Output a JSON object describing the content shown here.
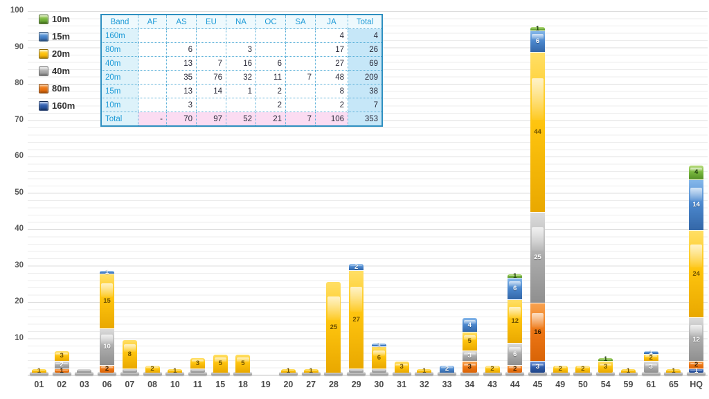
{
  "chart_data": {
    "type": "stacked-bar",
    "title": "",
    "xlabel": "",
    "ylabel": "",
    "ylim": [
      0,
      100
    ],
    "yticks": [
      100,
      90,
      80,
      70,
      60,
      50,
      40,
      30,
      20,
      10
    ],
    "grid": {
      "minor_step": 2,
      "major_step": 10
    },
    "legend_position": "top-left",
    "categories": [
      "01",
      "02",
      "03",
      "06",
      "07",
      "08",
      "10",
      "11",
      "15",
      "18",
      "19",
      "20",
      "27",
      "28",
      "29",
      "30",
      "31",
      "32",
      "33",
      "34",
      "43",
      "44",
      "45",
      "49",
      "50",
      "54",
      "59",
      "61",
      "65",
      "HQ"
    ],
    "series": [
      {
        "name": "160m",
        "color": "#2A56A8",
        "values": [
          0,
          0,
          0,
          0,
          0,
          0,
          0,
          0,
          0,
          0,
          0,
          0,
          0,
          0,
          0,
          0,
          0,
          0,
          0,
          0,
          0,
          0,
          3,
          0,
          0,
          0,
          0,
          0,
          0,
          1
        ]
      },
      {
        "name": "80m",
        "color": "#E8700A",
        "values": [
          0,
          1,
          0,
          2,
          0,
          0,
          0,
          0,
          0,
          0,
          0,
          0,
          0,
          0,
          0,
          0,
          0,
          0,
          0,
          3,
          0,
          2,
          16,
          0,
          0,
          0,
          0,
          0,
          0,
          2
        ]
      },
      {
        "name": "40m",
        "color": "#A6A6A6",
        "values": [
          0,
          2,
          1,
          10,
          1,
          0,
          0,
          1,
          0,
          0,
          0,
          0,
          0,
          0,
          1,
          1,
          0,
          0,
          0,
          3,
          0,
          6,
          25,
          0,
          0,
          0,
          0,
          3,
          0,
          12
        ]
      },
      {
        "name": "20m",
        "color": "#FDB900",
        "values": [
          1,
          3,
          0,
          15,
          8,
          2,
          1,
          3,
          5,
          5,
          0,
          1,
          1,
          25,
          27,
          6,
          3,
          1,
          0,
          5,
          2,
          12,
          44,
          2,
          2,
          3,
          1,
          2,
          1,
          24
        ]
      },
      {
        "name": "15m",
        "color": "#4080C8",
        "values": [
          0,
          0,
          0,
          1,
          0,
          0,
          0,
          0,
          0,
          0,
          0,
          0,
          0,
          0,
          2,
          1,
          0,
          0,
          2,
          4,
          0,
          6,
          6,
          0,
          0,
          0,
          0,
          1,
          0,
          14
        ]
      },
      {
        "name": "10m",
        "color": "#76B843",
        "values": [
          0,
          0,
          0,
          0,
          0,
          0,
          0,
          0,
          0,
          0,
          0,
          0,
          0,
          0,
          0,
          0,
          0,
          0,
          0,
          0,
          0,
          1,
          1,
          0,
          0,
          1,
          0,
          0,
          0,
          4
        ]
      }
    ]
  },
  "legend": {
    "items": [
      {
        "label": "10m",
        "band": "10m"
      },
      {
        "label": "15m",
        "band": "15m"
      },
      {
        "label": "20m",
        "band": "20m"
      },
      {
        "label": "40m",
        "band": "40m"
      },
      {
        "label": "80m",
        "band": "80m"
      },
      {
        "label": "160m",
        "band": "160m"
      }
    ]
  },
  "table": {
    "columns": [
      "Band",
      "AF",
      "AS",
      "EU",
      "NA",
      "OC",
      "SA",
      "JA",
      "Total"
    ],
    "rows": [
      [
        "160m",
        "",
        "",
        "",
        "",
        "",
        "",
        "4",
        "4"
      ],
      [
        "80m",
        "",
        "6",
        "",
        "3",
        "",
        "",
        "17",
        "26"
      ],
      [
        "40m",
        "",
        "13",
        "7",
        "16",
        "6",
        "",
        "27",
        "69"
      ],
      [
        "20m",
        "",
        "35",
        "76",
        "32",
        "11",
        "7",
        "48",
        "209"
      ],
      [
        "15m",
        "",
        "13",
        "14",
        "1",
        "2",
        "",
        "8",
        "38"
      ],
      [
        "10m",
        "",
        "3",
        "",
        "",
        "2",
        "",
        "2",
        "7"
      ]
    ],
    "total_row": [
      "Total",
      "-",
      "70",
      "97",
      "52",
      "21",
      "7",
      "106",
      "353"
    ]
  },
  "colors": {
    "10m": "#76B843",
    "15m": "#4080C8",
    "20m": "#FDB900",
    "40m": "#A6A6A6",
    "80m": "#E8700A",
    "160m": "#2A56A8",
    "table_header_text": "#1E9BD7",
    "table_total_fill": "#C6E7F8",
    "table_pink_fill": "#FBDCF2",
    "grid_major": "#DCDCDC",
    "grid_minor": "#ECECEC"
  }
}
